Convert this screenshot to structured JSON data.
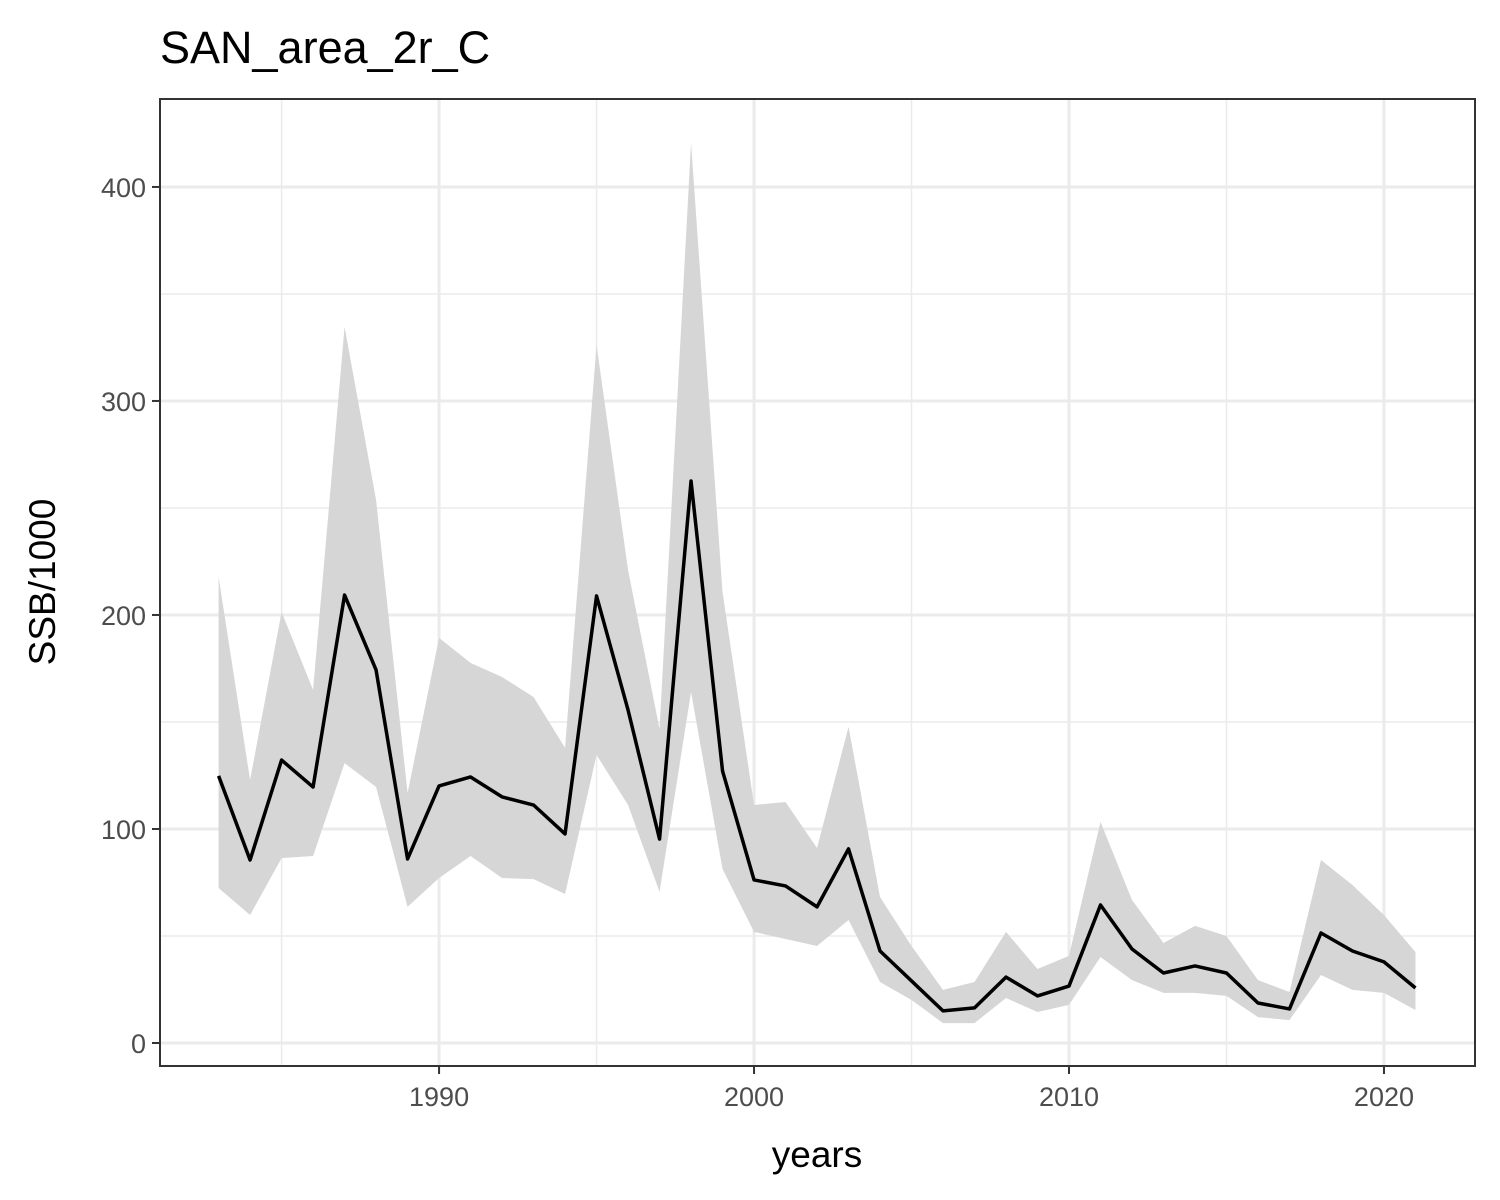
{
  "chart_data": {
    "type": "line",
    "title": "SAN_area_2r_C",
    "x_label": "years",
    "y_label": "SSB/1000",
    "x": [
      1983,
      1984,
      1985,
      1986,
      1987,
      1988,
      1989,
      1990,
      1991,
      1992,
      1993,
      1994,
      1995,
      1996,
      1997,
      1998,
      1999,
      2000,
      2001,
      2002,
      2003,
      2004,
      2005,
      2006,
      2007,
      2008,
      2009,
      2010,
      2011,
      2012,
      2013,
      2014,
      2015,
      2016,
      2017,
      2018,
      2019,
      2020,
      2021
    ],
    "values": [
      124.8,
      85.5,
      132.2,
      119.6,
      209.3,
      174.3,
      86,
      120.1,
      124.3,
      115,
      111.2,
      97.7,
      208.9,
      155.6,
      95.3,
      262.6,
      127.1,
      76.2,
      73.4,
      63.6,
      90.7,
      43,
      29,
      15,
      16.4,
      30.8,
      22,
      26.6,
      64.5,
      43.9,
      32.7,
      36,
      32.7,
      18.7,
      15.9,
      51.4,
      43,
      37.9,
      25.7
    ],
    "upper": [
      217.8,
      122.9,
      201.4,
      165,
      334.6,
      253.7,
      116.8,
      189.3,
      177.6,
      171,
      161.7,
      137.9,
      326.2,
      221,
      146.7,
      420.6,
      210.7,
      111.2,
      112.6,
      91.1,
      147.7,
      68.2,
      45.3,
      24.8,
      28.5,
      51.9,
      34.6,
      40.7,
      103.3,
      66.8,
      46.7,
      54.7,
      50,
      29.4,
      23.8,
      85.5,
      73.8,
      59.8,
      42.5
    ],
    "lower": [
      72.4,
      59.8,
      86.4,
      87.4,
      130.8,
      119.6,
      63.6,
      77.1,
      87.4,
      77.1,
      76.6,
      69.6,
      134.6,
      111.2,
      70.6,
      164,
      81.3,
      51.9,
      48.6,
      45.3,
      57.5,
      28.5,
      20.1,
      9.3,
      9.3,
      21,
      14.5,
      17.8,
      40.2,
      29.4,
      23.4,
      23.4,
      22,
      12.1,
      10.7,
      31.8,
      24.8,
      23.4,
      15.4
    ],
    "color": "#000000",
    "band_color": "#d6d6d6",
    "xlim": [
      1981.14,
      2022.89
    ],
    "ylim": [
      -10.75,
      441.1
    ],
    "xticks": [
      1990,
      2000,
      2010,
      2020
    ],
    "yticks": [
      0,
      100,
      200,
      300,
      400
    ],
    "x_minor_ticks": [
      1985,
      1995,
      2005,
      2015
    ],
    "y_minor_ticks": [
      50,
      150,
      250,
      350
    ],
    "grid": true
  }
}
